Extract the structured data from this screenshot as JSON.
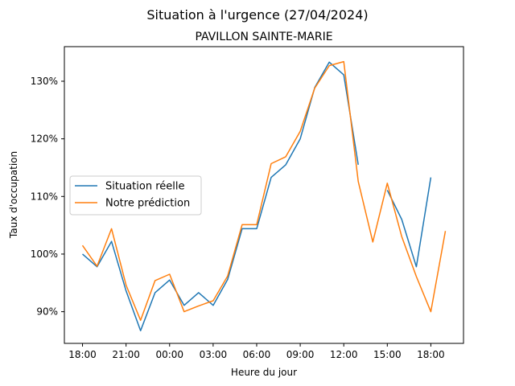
{
  "chart_data": {
    "type": "line",
    "title": "Situation à l'urgence (27/04/2024)",
    "subtitle": "PAVILLON SAINTE-MARIE",
    "xlabel": "Heure du jour",
    "ylabel": "Taux d'occupation",
    "x_hours": [
      0,
      1,
      2,
      3,
      4,
      5,
      6,
      7,
      8,
      9,
      10,
      11,
      12,
      13,
      14,
      15,
      16,
      17,
      18,
      19,
      20,
      21,
      22,
      23,
      24,
      25
    ],
    "x_ticks": [
      "18:00",
      "21:00",
      "00:00",
      "03:00",
      "06:00",
      "09:00",
      "12:00",
      "15:00",
      "18:00"
    ],
    "y_ticks": [
      "90%",
      "100%",
      "110%",
      "120%",
      "130%"
    ],
    "y_tick_values": [
      90,
      100,
      110,
      120,
      130
    ],
    "ylim": [
      84.5,
      136.0
    ],
    "xlim": [
      -1.25,
      26.25
    ],
    "grid": false,
    "legend_position": "center-left",
    "series": [
      {
        "name": "Situation réelle",
        "color": "#1f77b4",
        "values": [
          100.0,
          97.8,
          102.2,
          93.6,
          86.7,
          93.3,
          95.5,
          91.1,
          93.3,
          91.1,
          95.6,
          104.4,
          104.4,
          113.3,
          115.5,
          120.0,
          128.9,
          133.3,
          131.1,
          115.5,
          null,
          111.1,
          106.0,
          97.8,
          113.3,
          null
        ]
      },
      {
        "name": "Notre prédiction",
        "color": "#ff7f0e",
        "values": [
          101.5,
          97.9,
          104.4,
          94.6,
          88.5,
          95.4,
          96.5,
          90.0,
          91.0,
          91.9,
          96.2,
          105.1,
          105.1,
          115.7,
          116.9,
          121.3,
          128.8,
          132.7,
          133.4,
          112.6,
          102.1,
          112.3,
          103.0,
          96.1,
          90.0,
          104.0
        ]
      }
    ]
  }
}
